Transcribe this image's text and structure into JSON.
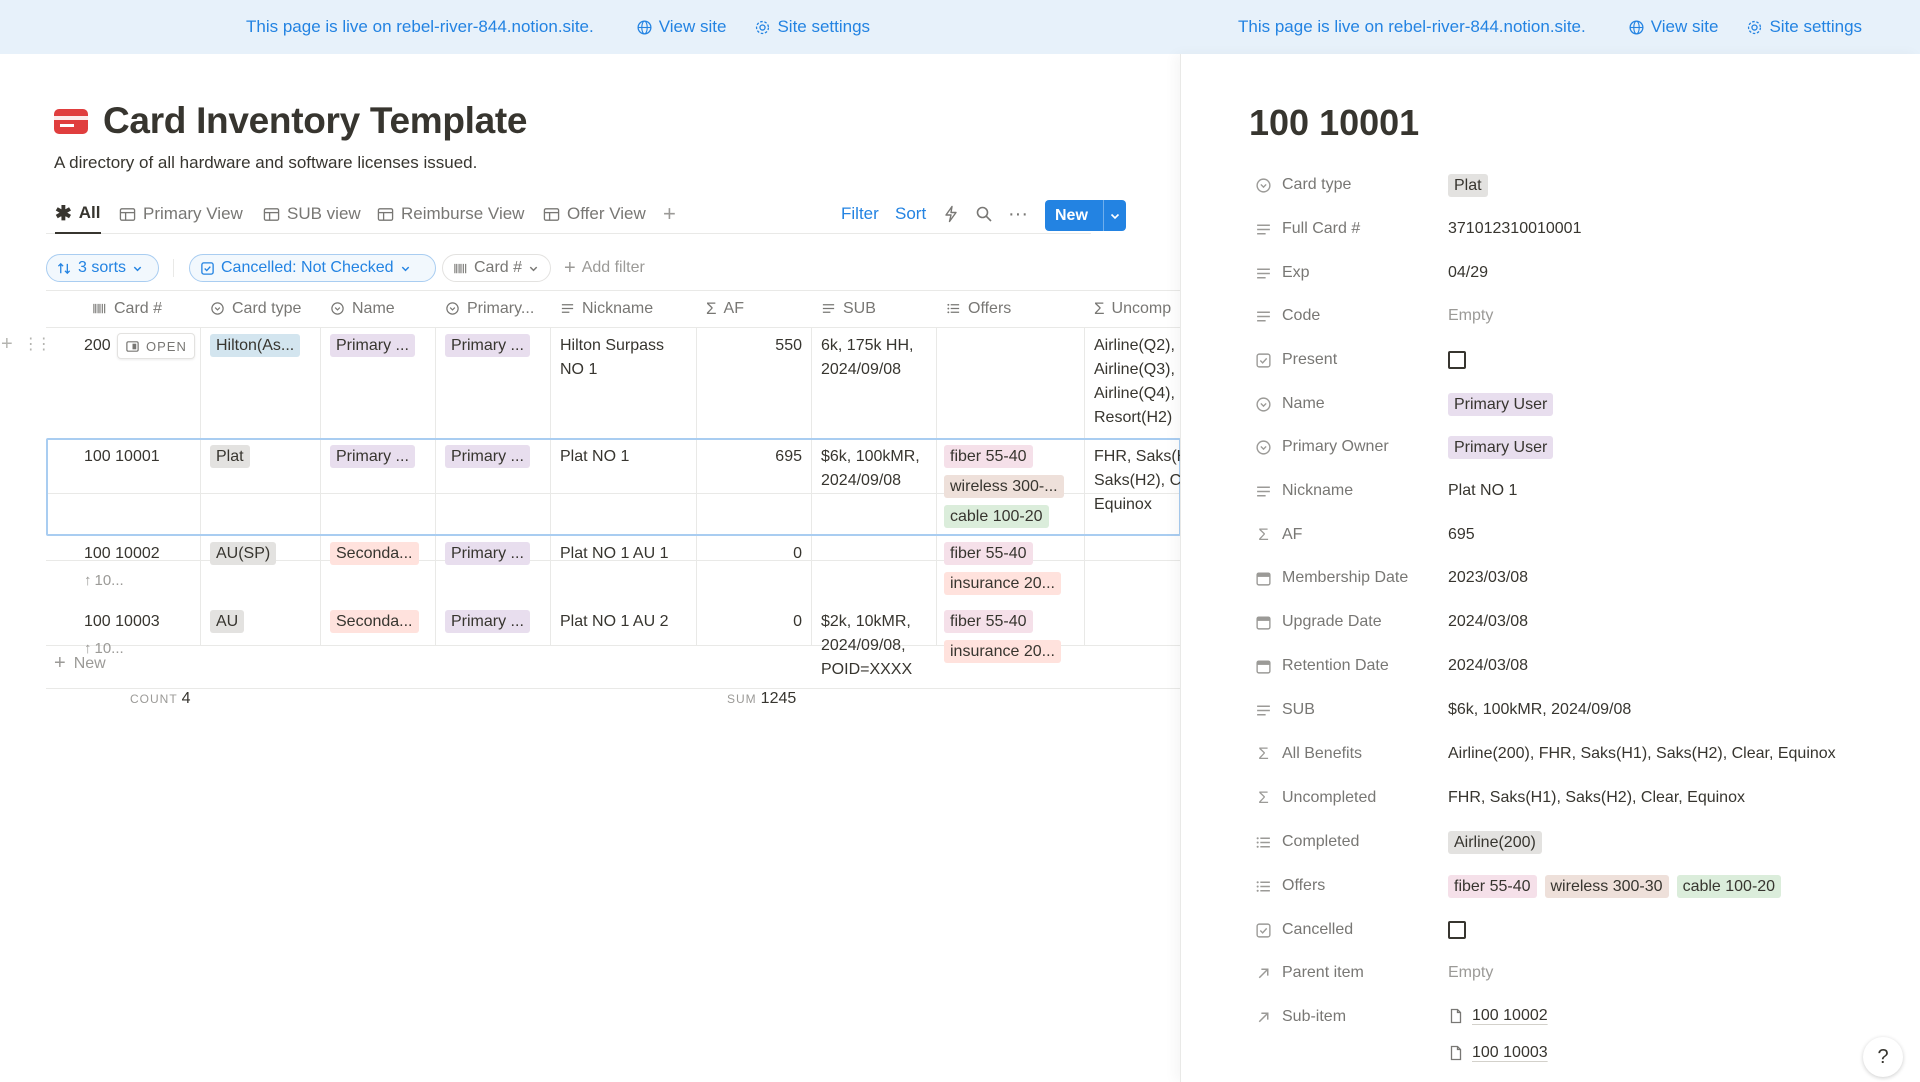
{
  "banner": {
    "site_text": "This page is live on rebel-river-844.notion.site.",
    "view_site": "View site",
    "site_settings": "Site settings"
  },
  "page": {
    "title": "Card Inventory Template",
    "description": "A directory of all hardware and software licenses issued."
  },
  "views": [
    "All",
    "Primary View",
    "SUB view",
    "Reimburse View",
    "Offer View"
  ],
  "toolbar": {
    "filter": "Filter",
    "sort": "Sort",
    "new": "New"
  },
  "filters": {
    "sorts": "3 sorts",
    "cancelled": "Cancelled: Not Checked",
    "card": "Card #",
    "add": "Add filter"
  },
  "columns": [
    "Card #",
    "Card type",
    "Name",
    "Primary...",
    "Nickname",
    "AF",
    "SUB",
    "Offers",
    "Uncomp"
  ],
  "rows": [
    {
      "card": "200",
      "open_label": "OPEN",
      "type": "Hilton(As...",
      "name": "Primary ...",
      "primary": "Primary ...",
      "nickname_1": "Hilton Surpass",
      "nickname_2": "NO 1",
      "af": "550",
      "sub_1": "6k, 175k HH,",
      "sub_2": "2024/09/08",
      "unc_1": "Airline(Q2),",
      "unc_2": "Airline(Q3),",
      "unc_3": "Airline(Q4),",
      "unc_4": "Resort(H2)"
    },
    {
      "card": "100 10001",
      "type": "Plat",
      "name": "Primary ...",
      "primary": "Primary ...",
      "nickname_1": "Plat NO 1",
      "af": "695",
      "sub_1": "$6k, 100kMR,",
      "sub_2": "2024/09/08",
      "offer_1": "fiber 55-40",
      "offer_2": "wireless 300-...",
      "offer_3": "cable 100-20",
      "unc_1": "FHR, Saks(H",
      "unc_2": "Saks(H2), C",
      "unc_3": "Equinox"
    },
    {
      "card": "100 10002",
      "parent": "10...",
      "type": "AU(SP)",
      "name": "Seconda...",
      "primary": "Primary ...",
      "nickname_1": "Plat NO 1 AU 1",
      "af": "0",
      "offer_1": "fiber 55-40",
      "offer_2": "insurance 20..."
    },
    {
      "card": "100 10003",
      "parent": "10...",
      "type": "AU",
      "name": "Seconda...",
      "primary": "Primary ...",
      "nickname_1": "Plat NO 1 AU 2",
      "af": "0",
      "sub_1": "$2k, 10kMR,",
      "sub_2": "2024/09/08,",
      "sub_3": "POID=XXXX",
      "offer_1": "fiber 55-40",
      "offer_2": "insurance 20..."
    }
  ],
  "footer": {
    "new_label": "New",
    "count_label": "COUNT",
    "count_value": "4",
    "sum_label": "SUM",
    "sum_value": "1245"
  },
  "detail": {
    "title": "100 10001",
    "props": {
      "card_type": {
        "label": "Card type",
        "value": "Plat"
      },
      "full_card": {
        "label": "Full Card #",
        "value": "371012310010001"
      },
      "exp": {
        "label": "Exp",
        "value": "04/29"
      },
      "code": {
        "label": "Code",
        "value": "Empty"
      },
      "present": {
        "label": "Present",
        "checked": false
      },
      "name": {
        "label": "Name",
        "value": "Primary User"
      },
      "primary_owner": {
        "label": "Primary Owner",
        "value": "Primary User"
      },
      "nickname": {
        "label": "Nickname",
        "value": "Plat NO 1"
      },
      "af": {
        "label": "AF",
        "value": "695"
      },
      "membership_date": {
        "label": "Membership Date",
        "value": "2023/03/08"
      },
      "upgrade_date": {
        "label": "Upgrade Date",
        "value": "2024/03/08"
      },
      "retention_date": {
        "label": "Retention Date",
        "value": "2024/03/08"
      },
      "sub": {
        "label": "SUB",
        "value": "$6k, 100kMR, 2024/09/08"
      },
      "all_benefits": {
        "label": "All Benefits",
        "value": "Airline(200), FHR, Saks(H1), Saks(H2), Clear, Equinox"
      },
      "uncompleted": {
        "label": "Uncompleted",
        "value": "FHR, Saks(H1), Saks(H2), Clear, Equinox"
      },
      "completed": {
        "label": "Completed",
        "value": "Airline(200)"
      },
      "offers": {
        "label": "Offers",
        "values": [
          "fiber 55-40",
          "wireless 300-30",
          "cable 100-20"
        ]
      },
      "cancelled": {
        "label": "Cancelled",
        "checked": false
      },
      "parent_item": {
        "label": "Parent item",
        "value": "Empty"
      },
      "sub_item": {
        "label": "Sub-item",
        "values": [
          "100 10002",
          "100 10003"
        ]
      }
    }
  },
  "help": "?",
  "colors": {
    "accent": "#2383e2",
    "banner_bg": "#e7f1fa",
    "page_icon": "#e03e3e",
    "tag_blue": "#d3e5ef",
    "tag_grey": "#e3e2e0",
    "tag_purple": "#e8deee",
    "tag_red": "#ffe2dd",
    "tag_brown": "#eee0da",
    "tag_green": "#dbeddb",
    "tag_pink": "#f5e0e9"
  },
  "icons": [
    "globe-icon",
    "gear-icon",
    "card-icon",
    "asterisk-icon",
    "table-icon",
    "plus-icon",
    "lightning-icon",
    "search-icon",
    "more-icon",
    "chevron-down-icon",
    "sort-icon",
    "checkbox-icon",
    "barcode-icon",
    "select-icon",
    "text-icon",
    "sigma-icon",
    "list-icon",
    "calendar-icon",
    "relation-arrow-icon",
    "page-icon",
    "drag-handle-icon",
    "open-icon",
    "parent-arrow-icon",
    "help-icon"
  ]
}
